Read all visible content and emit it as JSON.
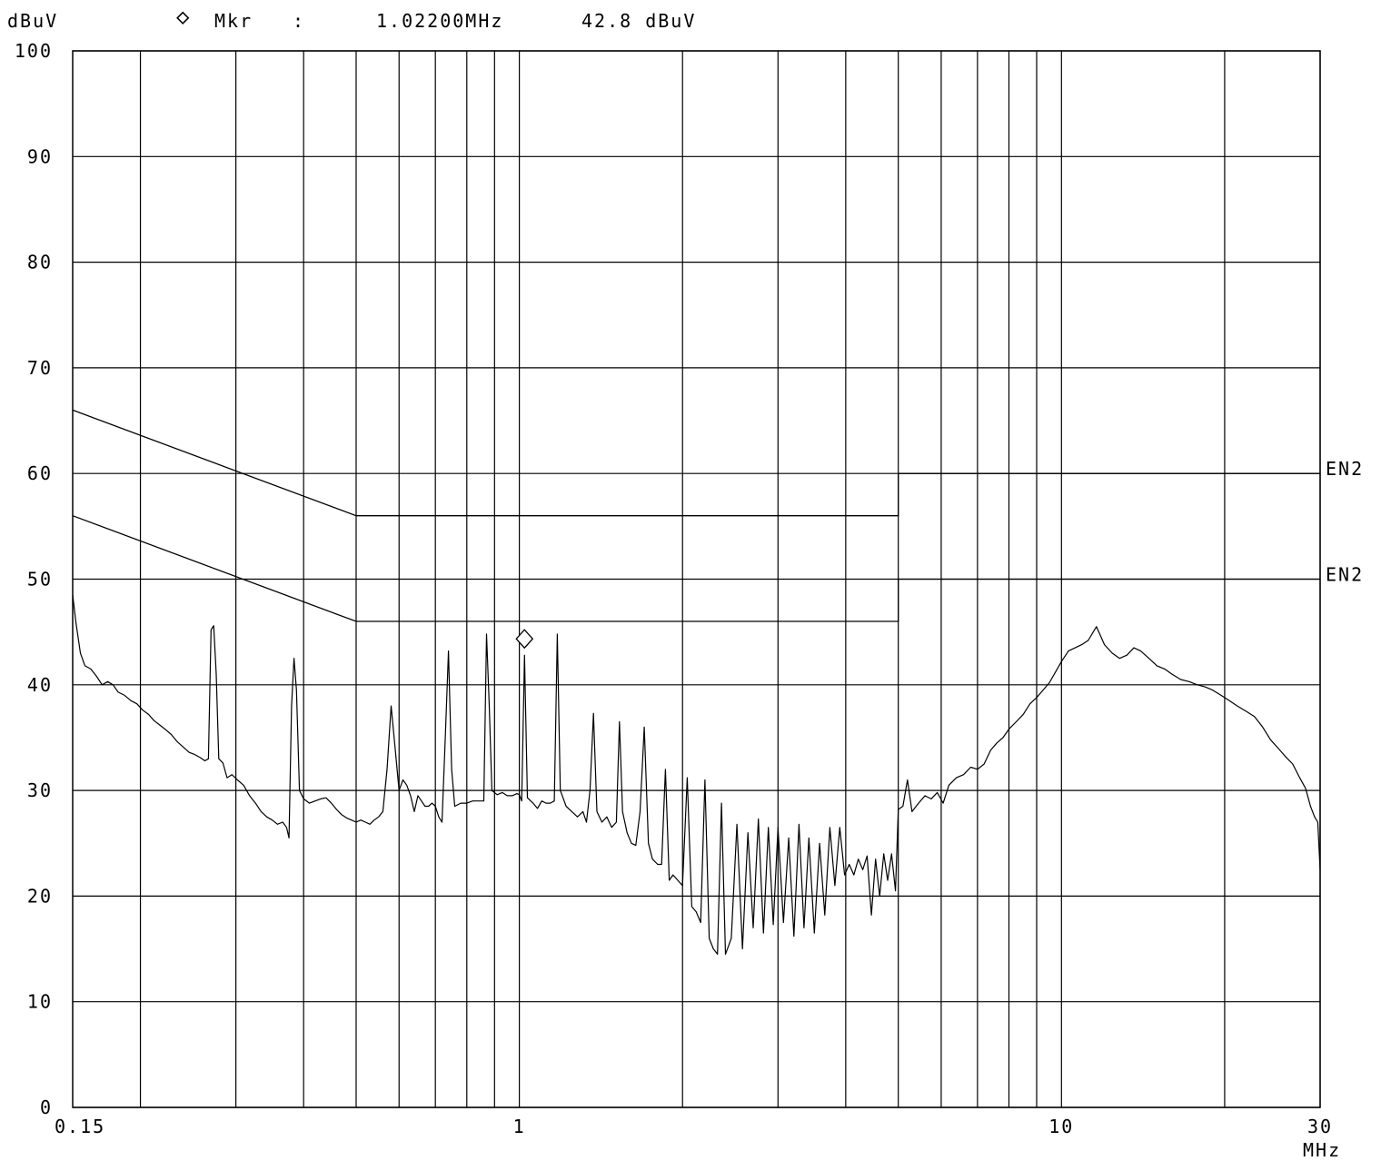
{
  "header": {
    "unit_label": "dBuV",
    "marker_symbol": "◇",
    "marker_label": "Mkr",
    "marker_separator": ":",
    "marker_frequency": "1.02200MHz",
    "marker_level": "42.8 dBuV"
  },
  "colors": {
    "line": "#000000",
    "background": "#ffffff"
  },
  "chart_data": {
    "type": "line",
    "title": "",
    "xlabel": "MHz",
    "ylabel": "dBuV",
    "x_scale": "log",
    "xlim": [
      0.15,
      30
    ],
    "ylim": [
      0,
      100
    ],
    "grid": true,
    "y_ticks": [
      0,
      10,
      20,
      30,
      40,
      50,
      60,
      70,
      80,
      90,
      100
    ],
    "y_tick_labels": [
      "0",
      "10",
      "20",
      "30",
      "40",
      "50",
      "60",
      "70",
      "80",
      "90",
      "100"
    ],
    "x_gridlines": [
      0.2,
      0.3,
      0.4,
      0.5,
      0.6,
      0.7,
      0.8,
      0.9,
      1,
      2,
      3,
      4,
      5,
      6,
      7,
      8,
      9,
      10,
      20,
      30
    ],
    "x_tick_labels": [
      {
        "value": 0.15,
        "label": "0.15"
      },
      {
        "value": 1,
        "label": "1"
      },
      {
        "value": 10,
        "label": "10"
      },
      {
        "value": 30,
        "label": "30"
      }
    ],
    "marker": {
      "x": 1.022,
      "y": 42.8
    },
    "limit_lines": [
      {
        "label": "EN2",
        "points": [
          [
            0.15,
            66
          ],
          [
            0.5,
            56
          ],
          [
            5,
            56
          ],
          [
            5,
            60
          ],
          [
            30,
            60
          ]
        ]
      },
      {
        "label": "EN2",
        "points": [
          [
            0.15,
            56
          ],
          [
            0.5,
            46
          ],
          [
            5,
            46
          ],
          [
            5,
            50
          ],
          [
            30,
            50
          ]
        ]
      }
    ],
    "series": [
      {
        "points": [
          [
            0.15,
            48.5
          ],
          [
            0.152,
            46
          ],
          [
            0.155,
            43
          ],
          [
            0.158,
            41.8
          ],
          [
            0.162,
            41.5
          ],
          [
            0.166,
            40.8
          ],
          [
            0.17,
            40
          ],
          [
            0.174,
            40.3
          ],
          [
            0.178,
            40
          ],
          [
            0.182,
            39.3
          ],
          [
            0.187,
            39
          ],
          [
            0.192,
            38.5
          ],
          [
            0.197,
            38.2
          ],
          [
            0.202,
            37.6
          ],
          [
            0.207,
            37.2
          ],
          [
            0.212,
            36.6
          ],
          [
            0.217,
            36.2
          ],
          [
            0.222,
            35.8
          ],
          [
            0.228,
            35.3
          ],
          [
            0.234,
            34.6
          ],
          [
            0.24,
            34.1
          ],
          [
            0.246,
            33.6
          ],
          [
            0.252,
            33.4
          ],
          [
            0.258,
            33.1
          ],
          [
            0.263,
            32.8
          ],
          [
            0.267,
            33.0
          ],
          [
            0.27,
            45.2
          ],
          [
            0.273,
            45.6
          ],
          [
            0.276,
            41
          ],
          [
            0.279,
            33
          ],
          [
            0.284,
            32.6
          ],
          [
            0.289,
            31.2
          ],
          [
            0.295,
            31.5
          ],
          [
            0.302,
            31
          ],
          [
            0.31,
            30.5
          ],
          [
            0.318,
            29.5
          ],
          [
            0.326,
            28.8
          ],
          [
            0.334,
            28
          ],
          [
            0.342,
            27.5
          ],
          [
            0.35,
            27.2
          ],
          [
            0.358,
            26.8
          ],
          [
            0.366,
            27
          ],
          [
            0.372,
            26.5
          ],
          [
            0.376,
            25.5
          ],
          [
            0.38,
            38
          ],
          [
            0.384,
            42.5
          ],
          [
            0.388,
            39.5
          ],
          [
            0.393,
            30
          ],
          [
            0.4,
            29.2
          ],
          [
            0.41,
            28.8
          ],
          [
            0.42,
            29
          ],
          [
            0.43,
            29.2
          ],
          [
            0.44,
            29.3
          ],
          [
            0.45,
            28.8
          ],
          [
            0.46,
            28.2
          ],
          [
            0.47,
            27.7
          ],
          [
            0.48,
            27.4
          ],
          [
            0.49,
            27.2
          ],
          [
            0.5,
            27
          ],
          [
            0.51,
            27.2
          ],
          [
            0.52,
            27
          ],
          [
            0.53,
            26.8
          ],
          [
            0.54,
            27.2
          ],
          [
            0.55,
            27.5
          ],
          [
            0.56,
            28
          ],
          [
            0.57,
            32
          ],
          [
            0.58,
            38
          ],
          [
            0.59,
            34
          ],
          [
            0.6,
            30
          ],
          [
            0.61,
            31
          ],
          [
            0.62,
            30.5
          ],
          [
            0.63,
            29.5
          ],
          [
            0.64,
            28
          ],
          [
            0.65,
            29.5
          ],
          [
            0.66,
            29
          ],
          [
            0.67,
            28.5
          ],
          [
            0.68,
            28.5
          ],
          [
            0.69,
            28.8
          ],
          [
            0.7,
            28.5
          ],
          [
            0.71,
            27.5
          ],
          [
            0.72,
            27
          ],
          [
            0.73,
            35
          ],
          [
            0.74,
            43.2
          ],
          [
            0.75,
            32
          ],
          [
            0.76,
            28.5
          ],
          [
            0.78,
            28.8
          ],
          [
            0.8,
            28.8
          ],
          [
            0.82,
            29
          ],
          [
            0.84,
            29
          ],
          [
            0.86,
            29
          ],
          [
            0.87,
            44.8
          ],
          [
            0.88,
            38
          ],
          [
            0.89,
            30
          ],
          [
            0.91,
            29.6
          ],
          [
            0.93,
            29.8
          ],
          [
            0.95,
            29.5
          ],
          [
            0.97,
            29.5
          ],
          [
            0.99,
            29.7
          ],
          [
            1.0,
            29.6
          ],
          [
            1.01,
            29
          ],
          [
            1.022,
            42.8
          ],
          [
            1.035,
            29.3
          ],
          [
            1.06,
            28.8
          ],
          [
            1.08,
            28.3
          ],
          [
            1.1,
            29
          ],
          [
            1.12,
            28.8
          ],
          [
            1.14,
            28.8
          ],
          [
            1.16,
            29
          ],
          [
            1.175,
            44.8
          ],
          [
            1.19,
            30
          ],
          [
            1.22,
            28.5
          ],
          [
            1.25,
            28
          ],
          [
            1.28,
            27.5
          ],
          [
            1.31,
            28
          ],
          [
            1.33,
            27
          ],
          [
            1.35,
            30
          ],
          [
            1.37,
            37.3
          ],
          [
            1.39,
            28
          ],
          [
            1.42,
            27
          ],
          [
            1.45,
            27.5
          ],
          [
            1.48,
            26.5
          ],
          [
            1.51,
            27
          ],
          [
            1.53,
            36.5
          ],
          [
            1.55,
            28
          ],
          [
            1.58,
            26
          ],
          [
            1.61,
            25
          ],
          [
            1.64,
            24.8
          ],
          [
            1.67,
            28
          ],
          [
            1.7,
            36
          ],
          [
            1.73,
            25
          ],
          [
            1.76,
            23.5
          ],
          [
            1.8,
            23
          ],
          [
            1.83,
            23
          ],
          [
            1.86,
            32
          ],
          [
            1.89,
            21.5
          ],
          [
            1.92,
            22
          ],
          [
            1.96,
            21.5
          ],
          [
            2.0,
            21
          ],
          [
            2.04,
            31.2
          ],
          [
            2.08,
            19
          ],
          [
            2.12,
            18.5
          ],
          [
            2.16,
            17.5
          ],
          [
            2.2,
            31
          ],
          [
            2.24,
            16
          ],
          [
            2.28,
            15
          ],
          [
            2.32,
            14.5
          ],
          [
            2.36,
            28.8
          ],
          [
            2.4,
            14.5
          ],
          [
            2.46,
            16
          ],
          [
            2.52,
            26.8
          ],
          [
            2.58,
            15
          ],
          [
            2.64,
            26
          ],
          [
            2.7,
            17
          ],
          [
            2.76,
            27.3
          ],
          [
            2.82,
            16.5
          ],
          [
            2.88,
            26.5
          ],
          [
            2.94,
            17.3
          ],
          [
            3.0,
            26.5
          ],
          [
            3.07,
            17.5
          ],
          [
            3.14,
            25.5
          ],
          [
            3.21,
            16.2
          ],
          [
            3.28,
            26.8
          ],
          [
            3.35,
            17
          ],
          [
            3.42,
            25.5
          ],
          [
            3.5,
            16.5
          ],
          [
            3.58,
            25
          ],
          [
            3.66,
            18.2
          ],
          [
            3.74,
            26.5
          ],
          [
            3.82,
            21
          ],
          [
            3.9,
            26.5
          ],
          [
            3.98,
            22
          ],
          [
            4.06,
            23
          ],
          [
            4.14,
            22
          ],
          [
            4.22,
            23.5
          ],
          [
            4.3,
            22.5
          ],
          [
            4.38,
            23.8
          ],
          [
            4.46,
            18.2
          ],
          [
            4.54,
            23.5
          ],
          [
            4.62,
            20
          ],
          [
            4.7,
            24
          ],
          [
            4.78,
            21.5
          ],
          [
            4.86,
            24
          ],
          [
            4.94,
            20.5
          ],
          [
            5.0,
            28.2
          ],
          [
            5.1,
            28.5
          ],
          [
            5.2,
            31
          ],
          [
            5.3,
            28
          ],
          [
            5.45,
            28.8
          ],
          [
            5.6,
            29.5
          ],
          [
            5.75,
            29.2
          ],
          [
            5.9,
            29.8
          ],
          [
            6.05,
            28.8
          ],
          [
            6.2,
            30.5
          ],
          [
            6.4,
            31.2
          ],
          [
            6.6,
            31.5
          ],
          [
            6.8,
            32.2
          ],
          [
            7.0,
            32
          ],
          [
            7.2,
            32.5
          ],
          [
            7.4,
            33.8
          ],
          [
            7.6,
            34.5
          ],
          [
            7.8,
            35
          ],
          [
            8.0,
            35.8
          ],
          [
            8.25,
            36.5
          ],
          [
            8.5,
            37.2
          ],
          [
            8.75,
            38.2
          ],
          [
            9.0,
            38.8
          ],
          [
            9.25,
            39.5
          ],
          [
            9.5,
            40.2
          ],
          [
            9.75,
            41.2
          ],
          [
            10.0,
            42.2
          ],
          [
            10.3,
            43.2
          ],
          [
            10.6,
            43.5
          ],
          [
            10.9,
            43.8
          ],
          [
            11.2,
            44.2
          ],
          [
            11.6,
            45.5
          ],
          [
            12.0,
            43.8
          ],
          [
            12.4,
            43
          ],
          [
            12.8,
            42.5
          ],
          [
            13.2,
            42.8
          ],
          [
            13.6,
            43.5
          ],
          [
            14.0,
            43.2
          ],
          [
            14.5,
            42.5
          ],
          [
            15.0,
            41.8
          ],
          [
            15.5,
            41.5
          ],
          [
            16.0,
            41
          ],
          [
            16.6,
            40.5
          ],
          [
            17.2,
            40.3
          ],
          [
            17.8,
            40
          ],
          [
            18.4,
            39.8
          ],
          [
            19.0,
            39.5
          ],
          [
            19.7,
            39
          ],
          [
            20.4,
            38.5
          ],
          [
            21.1,
            38
          ],
          [
            21.9,
            37.5
          ],
          [
            22.7,
            37
          ],
          [
            23.5,
            36
          ],
          [
            24.3,
            34.8
          ],
          [
            25.1,
            34
          ],
          [
            25.9,
            33.2
          ],
          [
            26.7,
            32.5
          ],
          [
            27.5,
            31.2
          ],
          [
            28.2,
            30.2
          ],
          [
            28.8,
            28.5
          ],
          [
            29.3,
            27.5
          ],
          [
            29.7,
            27
          ],
          [
            30.0,
            22.5
          ]
        ]
      }
    ]
  }
}
